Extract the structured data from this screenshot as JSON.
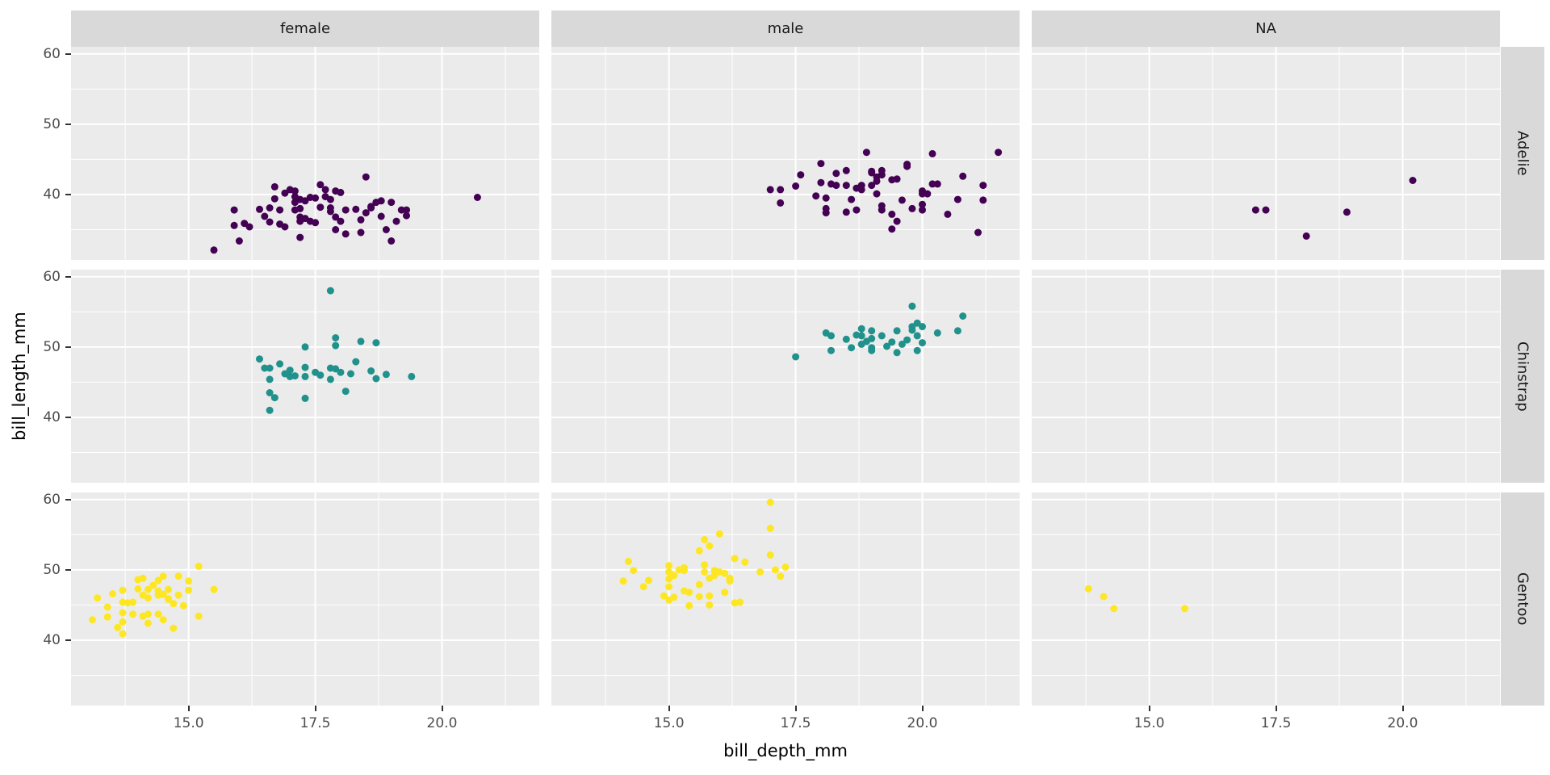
{
  "chart_data": {
    "type": "scatter",
    "title": "",
    "xlabel": "bill_depth_mm",
    "ylabel": "bill_length_mm",
    "col_facets": [
      "female",
      "male",
      "NA"
    ],
    "row_facets": [
      "Adelie",
      "Chinstrap",
      "Gentoo"
    ],
    "xlim": [
      12.68,
      21.92
    ],
    "ylim": [
      30.7,
      61.0
    ],
    "x_ticks": [
      15.0,
      17.5,
      20.0
    ],
    "x_tick_labels": [
      "15.0",
      "17.5",
      "20.0"
    ],
    "x_minor_ticks": [
      13.75,
      16.25,
      18.75,
      21.25
    ],
    "y_ticks": [
      40,
      50,
      60
    ],
    "y_tick_labels": [
      "40",
      "50",
      "60"
    ],
    "y_minor_ticks": [
      35,
      45,
      55
    ],
    "grid": true,
    "legend_position": "none",
    "panel_bg_color": "#EBEBEB",
    "strip_bg_color": "#D9D9D9",
    "grid_color": "#FFFFFF",
    "species_colors": {
      "Adelie": "#440154",
      "Chinstrap": "#21918C",
      "Gentoo": "#FDE725"
    },
    "series": [
      {
        "species": "Adelie",
        "sex": "female",
        "color": "#440154",
        "points": [
          [
            15.5,
            32.1
          ],
          [
            15.9,
            37.8
          ],
          [
            16.0,
            33.4
          ],
          [
            15.9,
            35.6
          ],
          [
            16.1,
            35.9
          ],
          [
            16.2,
            35.4
          ],
          [
            16.4,
            37.9
          ],
          [
            16.5,
            36.9
          ],
          [
            16.6,
            36.1
          ],
          [
            16.6,
            38.1
          ],
          [
            16.7,
            39.4
          ],
          [
            16.7,
            41.1
          ],
          [
            16.8,
            37.8
          ],
          [
            16.8,
            35.8
          ],
          [
            16.9,
            35.4
          ],
          [
            16.9,
            40.2
          ],
          [
            17.0,
            40.7
          ],
          [
            17.1,
            40.5
          ],
          [
            17.1,
            38.9
          ],
          [
            17.1,
            37.8
          ],
          [
            17.1,
            39.7
          ],
          [
            17.2,
            39.3
          ],
          [
            17.2,
            38.0
          ],
          [
            17.2,
            36.8
          ],
          [
            17.2,
            36.2
          ],
          [
            17.2,
            33.9
          ],
          [
            17.3,
            39.1
          ],
          [
            17.3,
            36.6
          ],
          [
            17.4,
            36.2
          ],
          [
            17.4,
            39.6
          ],
          [
            17.5,
            39.5
          ],
          [
            17.5,
            36.0
          ],
          [
            17.6,
            41.4
          ],
          [
            17.6,
            38.2
          ],
          [
            17.7,
            39.7
          ],
          [
            17.7,
            40.7
          ],
          [
            17.8,
            39.3
          ],
          [
            17.8,
            37.6
          ],
          [
            17.8,
            38.1
          ],
          [
            17.9,
            36.8
          ],
          [
            17.9,
            35.0
          ],
          [
            17.9,
            40.5
          ],
          [
            18.0,
            40.3
          ],
          [
            18.0,
            36.2
          ],
          [
            18.1,
            34.4
          ],
          [
            18.1,
            37.8
          ],
          [
            18.3,
            37.9
          ],
          [
            18.4,
            34.6
          ],
          [
            18.4,
            36.4
          ],
          [
            18.5,
            42.5
          ],
          [
            18.5,
            37.4
          ],
          [
            18.6,
            38.3
          ],
          [
            18.6,
            38.1
          ],
          [
            18.7,
            38.9
          ],
          [
            18.8,
            39.1
          ],
          [
            18.8,
            36.9
          ],
          [
            18.9,
            35.0
          ],
          [
            19.0,
            38.9
          ],
          [
            19.0,
            33.4
          ],
          [
            19.1,
            36.2
          ],
          [
            19.2,
            37.8
          ],
          [
            19.3,
            37.0
          ],
          [
            19.3,
            37.8
          ],
          [
            20.7,
            39.6
          ]
        ]
      },
      {
        "species": "Adelie",
        "sex": "male",
        "color": "#440154",
        "points": [
          [
            17.0,
            40.7
          ],
          [
            17.2,
            40.7
          ],
          [
            17.2,
            38.8
          ],
          [
            17.5,
            41.2
          ],
          [
            17.6,
            42.8
          ],
          [
            18.0,
            44.4
          ],
          [
            17.9,
            39.8
          ],
          [
            18.0,
            41.7
          ],
          [
            18.1,
            39.5
          ],
          [
            18.1,
            38.0
          ],
          [
            18.1,
            37.4
          ],
          [
            18.2,
            41.5
          ],
          [
            18.3,
            43.0
          ],
          [
            18.3,
            41.3
          ],
          [
            18.5,
            41.3
          ],
          [
            18.5,
            43.4
          ],
          [
            18.5,
            37.5
          ],
          [
            18.7,
            37.8
          ],
          [
            18.6,
            39.3
          ],
          [
            18.7,
            40.9
          ],
          [
            18.8,
            41.3
          ],
          [
            18.8,
            40.7
          ],
          [
            18.9,
            46.0
          ],
          [
            19.0,
            43.1
          ],
          [
            19.0,
            41.3
          ],
          [
            19.1,
            40.1
          ],
          [
            19.1,
            41.9
          ],
          [
            19.2,
            42.8
          ],
          [
            19.2,
            37.8
          ],
          [
            19.2,
            38.4
          ],
          [
            19.4,
            42.1
          ],
          [
            19.4,
            37.2
          ],
          [
            19.5,
            36.2
          ],
          [
            19.4,
            35.1
          ],
          [
            19.7,
            44.0
          ],
          [
            19.6,
            39.2
          ],
          [
            19.8,
            38.0
          ],
          [
            20.0,
            40.5
          ],
          [
            20.0,
            40.1
          ],
          [
            20.2,
            45.8
          ],
          [
            20.2,
            41.5
          ],
          [
            19.0,
            43.3
          ],
          [
            19.1,
            42.5
          ],
          [
            19.2,
            43.4
          ],
          [
            19.5,
            42.2
          ],
          [
            19.7,
            44.3
          ],
          [
            20.0,
            38.6
          ],
          [
            20.0,
            37.8
          ],
          [
            20.1,
            40.1
          ],
          [
            20.3,
            41.5
          ],
          [
            20.5,
            37.2
          ],
          [
            20.7,
            39.3
          ],
          [
            20.8,
            42.6
          ],
          [
            21.1,
            34.6
          ],
          [
            21.2,
            41.3
          ],
          [
            21.2,
            39.2
          ],
          [
            21.5,
            46.0
          ]
        ]
      },
      {
        "species": "Adelie",
        "sex": "NA",
        "color": "#440154",
        "points": [
          [
            17.1,
            37.8
          ],
          [
            17.3,
            37.8
          ],
          [
            18.1,
            34.1
          ],
          [
            18.9,
            37.5
          ],
          [
            20.2,
            42.0
          ]
        ]
      },
      {
        "species": "Chinstrap",
        "sex": "female",
        "color": "#21918C",
        "points": [
          [
            17.8,
            58.0
          ],
          [
            17.9,
            51.3
          ],
          [
            17.9,
            50.2
          ],
          [
            17.3,
            50.0
          ],
          [
            18.4,
            50.8
          ],
          [
            18.7,
            50.6
          ],
          [
            16.4,
            48.3
          ],
          [
            16.5,
            47.0
          ],
          [
            16.6,
            47.0
          ],
          [
            16.8,
            47.6
          ],
          [
            16.6,
            45.4
          ],
          [
            16.6,
            43.5
          ],
          [
            16.7,
            42.8
          ],
          [
            16.6,
            41.0
          ],
          [
            17.0,
            45.8
          ],
          [
            17.1,
            45.9
          ],
          [
            17.3,
            47.1
          ],
          [
            17.3,
            45.8
          ],
          [
            17.3,
            42.7
          ],
          [
            17.5,
            46.4
          ],
          [
            17.8,
            47.0
          ],
          [
            17.8,
            45.4
          ],
          [
            17.9,
            46.9
          ],
          [
            18.2,
            46.2
          ],
          [
            18.3,
            47.9
          ],
          [
            18.6,
            46.6
          ],
          [
            18.7,
            45.5
          ],
          [
            18.9,
            46.1
          ],
          [
            18.1,
            43.7
          ],
          [
            19.4,
            45.8
          ],
          [
            16.9,
            46.2
          ],
          [
            17.0,
            46.7
          ],
          [
            17.6,
            46.0
          ],
          [
            18.0,
            46.4
          ]
        ]
      },
      {
        "species": "Chinstrap",
        "sex": "male",
        "color": "#21918C",
        "points": [
          [
            17.5,
            48.6
          ],
          [
            18.1,
            52.0
          ],
          [
            18.2,
            51.6
          ],
          [
            18.2,
            49.5
          ],
          [
            18.5,
            51.1
          ],
          [
            18.6,
            49.9
          ],
          [
            18.7,
            51.7
          ],
          [
            18.8,
            52.6
          ],
          [
            18.8,
            51.6
          ],
          [
            18.8,
            50.4
          ],
          [
            19.0,
            52.3
          ],
          [
            19.0,
            51.2
          ],
          [
            19.0,
            49.5
          ],
          [
            19.8,
            55.8
          ],
          [
            20.8,
            54.4
          ],
          [
            19.9,
            53.4
          ],
          [
            20.0,
            52.9
          ],
          [
            19.8,
            52.9
          ],
          [
            19.8,
            52.4
          ],
          [
            19.5,
            52.3
          ],
          [
            19.2,
            51.6
          ],
          [
            19.4,
            50.7
          ],
          [
            19.6,
            50.4
          ],
          [
            19.7,
            51.0
          ],
          [
            19.9,
            51.6
          ],
          [
            20.0,
            50.6
          ],
          [
            19.5,
            49.2
          ],
          [
            19.9,
            49.5
          ],
          [
            20.3,
            52.0
          ],
          [
            20.7,
            52.3
          ],
          [
            19.0,
            49.9
          ],
          [
            18.9,
            50.8
          ],
          [
            19.3,
            50.1
          ]
        ]
      },
      {
        "species": "Chinstrap",
        "sex": "NA",
        "color": "#21918C",
        "points": []
      },
      {
        "species": "Gentoo",
        "sex": "female",
        "color": "#FDE725",
        "points": [
          [
            15.2,
            50.5
          ],
          [
            14.1,
            48.8
          ],
          [
            14.5,
            49.1
          ],
          [
            14.4,
            48.5
          ],
          [
            14.8,
            49.1
          ],
          [
            15.0,
            48.4
          ],
          [
            15.0,
            47.1
          ],
          [
            14.0,
            48.6
          ],
          [
            13.7,
            47.1
          ],
          [
            13.5,
            46.6
          ],
          [
            13.2,
            46.0
          ],
          [
            13.4,
            44.7
          ],
          [
            13.7,
            45.4
          ],
          [
            13.8,
            45.3
          ],
          [
            13.9,
            45.4
          ],
          [
            14.0,
            47.3
          ],
          [
            14.1,
            46.4
          ],
          [
            14.2,
            46.0
          ],
          [
            14.2,
            47.2
          ],
          [
            14.3,
            47.8
          ],
          [
            14.4,
            47.0
          ],
          [
            14.4,
            46.4
          ],
          [
            14.5,
            46.5
          ],
          [
            14.6,
            45.8
          ],
          [
            14.6,
            47.2
          ],
          [
            14.6,
            45.9
          ],
          [
            14.7,
            45.2
          ],
          [
            14.8,
            46.4
          ],
          [
            14.9,
            44.9
          ],
          [
            13.1,
            42.9
          ],
          [
            13.4,
            43.3
          ],
          [
            13.6,
            41.8
          ],
          [
            13.7,
            43.9
          ],
          [
            13.7,
            42.6
          ],
          [
            13.7,
            40.9
          ],
          [
            13.9,
            43.7
          ],
          [
            14.1,
            43.4
          ],
          [
            14.2,
            43.7
          ],
          [
            14.2,
            42.4
          ],
          [
            14.4,
            43.7
          ],
          [
            14.5,
            42.9
          ],
          [
            14.7,
            41.7
          ],
          [
            15.2,
            43.4
          ],
          [
            15.5,
            47.2
          ]
        ]
      },
      {
        "species": "Gentoo",
        "sex": "male",
        "color": "#FDE725",
        "points": [
          [
            17.0,
            59.6
          ],
          [
            17.0,
            55.9
          ],
          [
            16.0,
            55.1
          ],
          [
            15.7,
            54.3
          ],
          [
            15.8,
            53.4
          ],
          [
            15.6,
            52.7
          ],
          [
            17.0,
            52.1
          ],
          [
            16.3,
            51.6
          ],
          [
            16.5,
            51.1
          ],
          [
            14.2,
            51.2
          ],
          [
            14.3,
            49.9
          ],
          [
            14.1,
            48.4
          ],
          [
            14.6,
            48.5
          ],
          [
            14.5,
            47.6
          ],
          [
            15.0,
            50.6
          ],
          [
            15.0,
            49.7
          ],
          [
            15.0,
            48.7
          ],
          [
            15.0,
            47.6
          ],
          [
            15.1,
            49.2
          ],
          [
            15.2,
            50.0
          ],
          [
            15.3,
            50.3
          ],
          [
            15.3,
            49.9
          ],
          [
            14.9,
            46.3
          ],
          [
            15.0,
            45.7
          ],
          [
            15.1,
            46.1
          ],
          [
            15.3,
            47.0
          ],
          [
            15.4,
            46.8
          ],
          [
            15.4,
            44.9
          ],
          [
            15.6,
            47.9
          ],
          [
            15.6,
            46.2
          ],
          [
            15.7,
            50.7
          ],
          [
            15.7,
            49.7
          ],
          [
            15.8,
            48.8
          ],
          [
            15.8,
            46.3
          ],
          [
            15.8,
            45.0
          ],
          [
            15.9,
            49.9
          ],
          [
            15.9,
            49.2
          ],
          [
            16.0,
            49.7
          ],
          [
            16.1,
            49.5
          ],
          [
            16.2,
            48.8
          ],
          [
            16.2,
            48.4
          ],
          [
            16.1,
            46.8
          ],
          [
            16.3,
            45.3
          ],
          [
            16.4,
            45.4
          ],
          [
            16.8,
            49.7
          ],
          [
            17.1,
            50.0
          ],
          [
            17.3,
            50.4
          ],
          [
            17.2,
            49.1
          ]
        ]
      },
      {
        "species": "Gentoo",
        "sex": "NA",
        "color": "#FDE725",
        "points": [
          [
            13.8,
            47.3
          ],
          [
            14.1,
            46.2
          ],
          [
            14.3,
            44.5
          ],
          [
            15.7,
            44.5
          ]
        ]
      }
    ]
  }
}
